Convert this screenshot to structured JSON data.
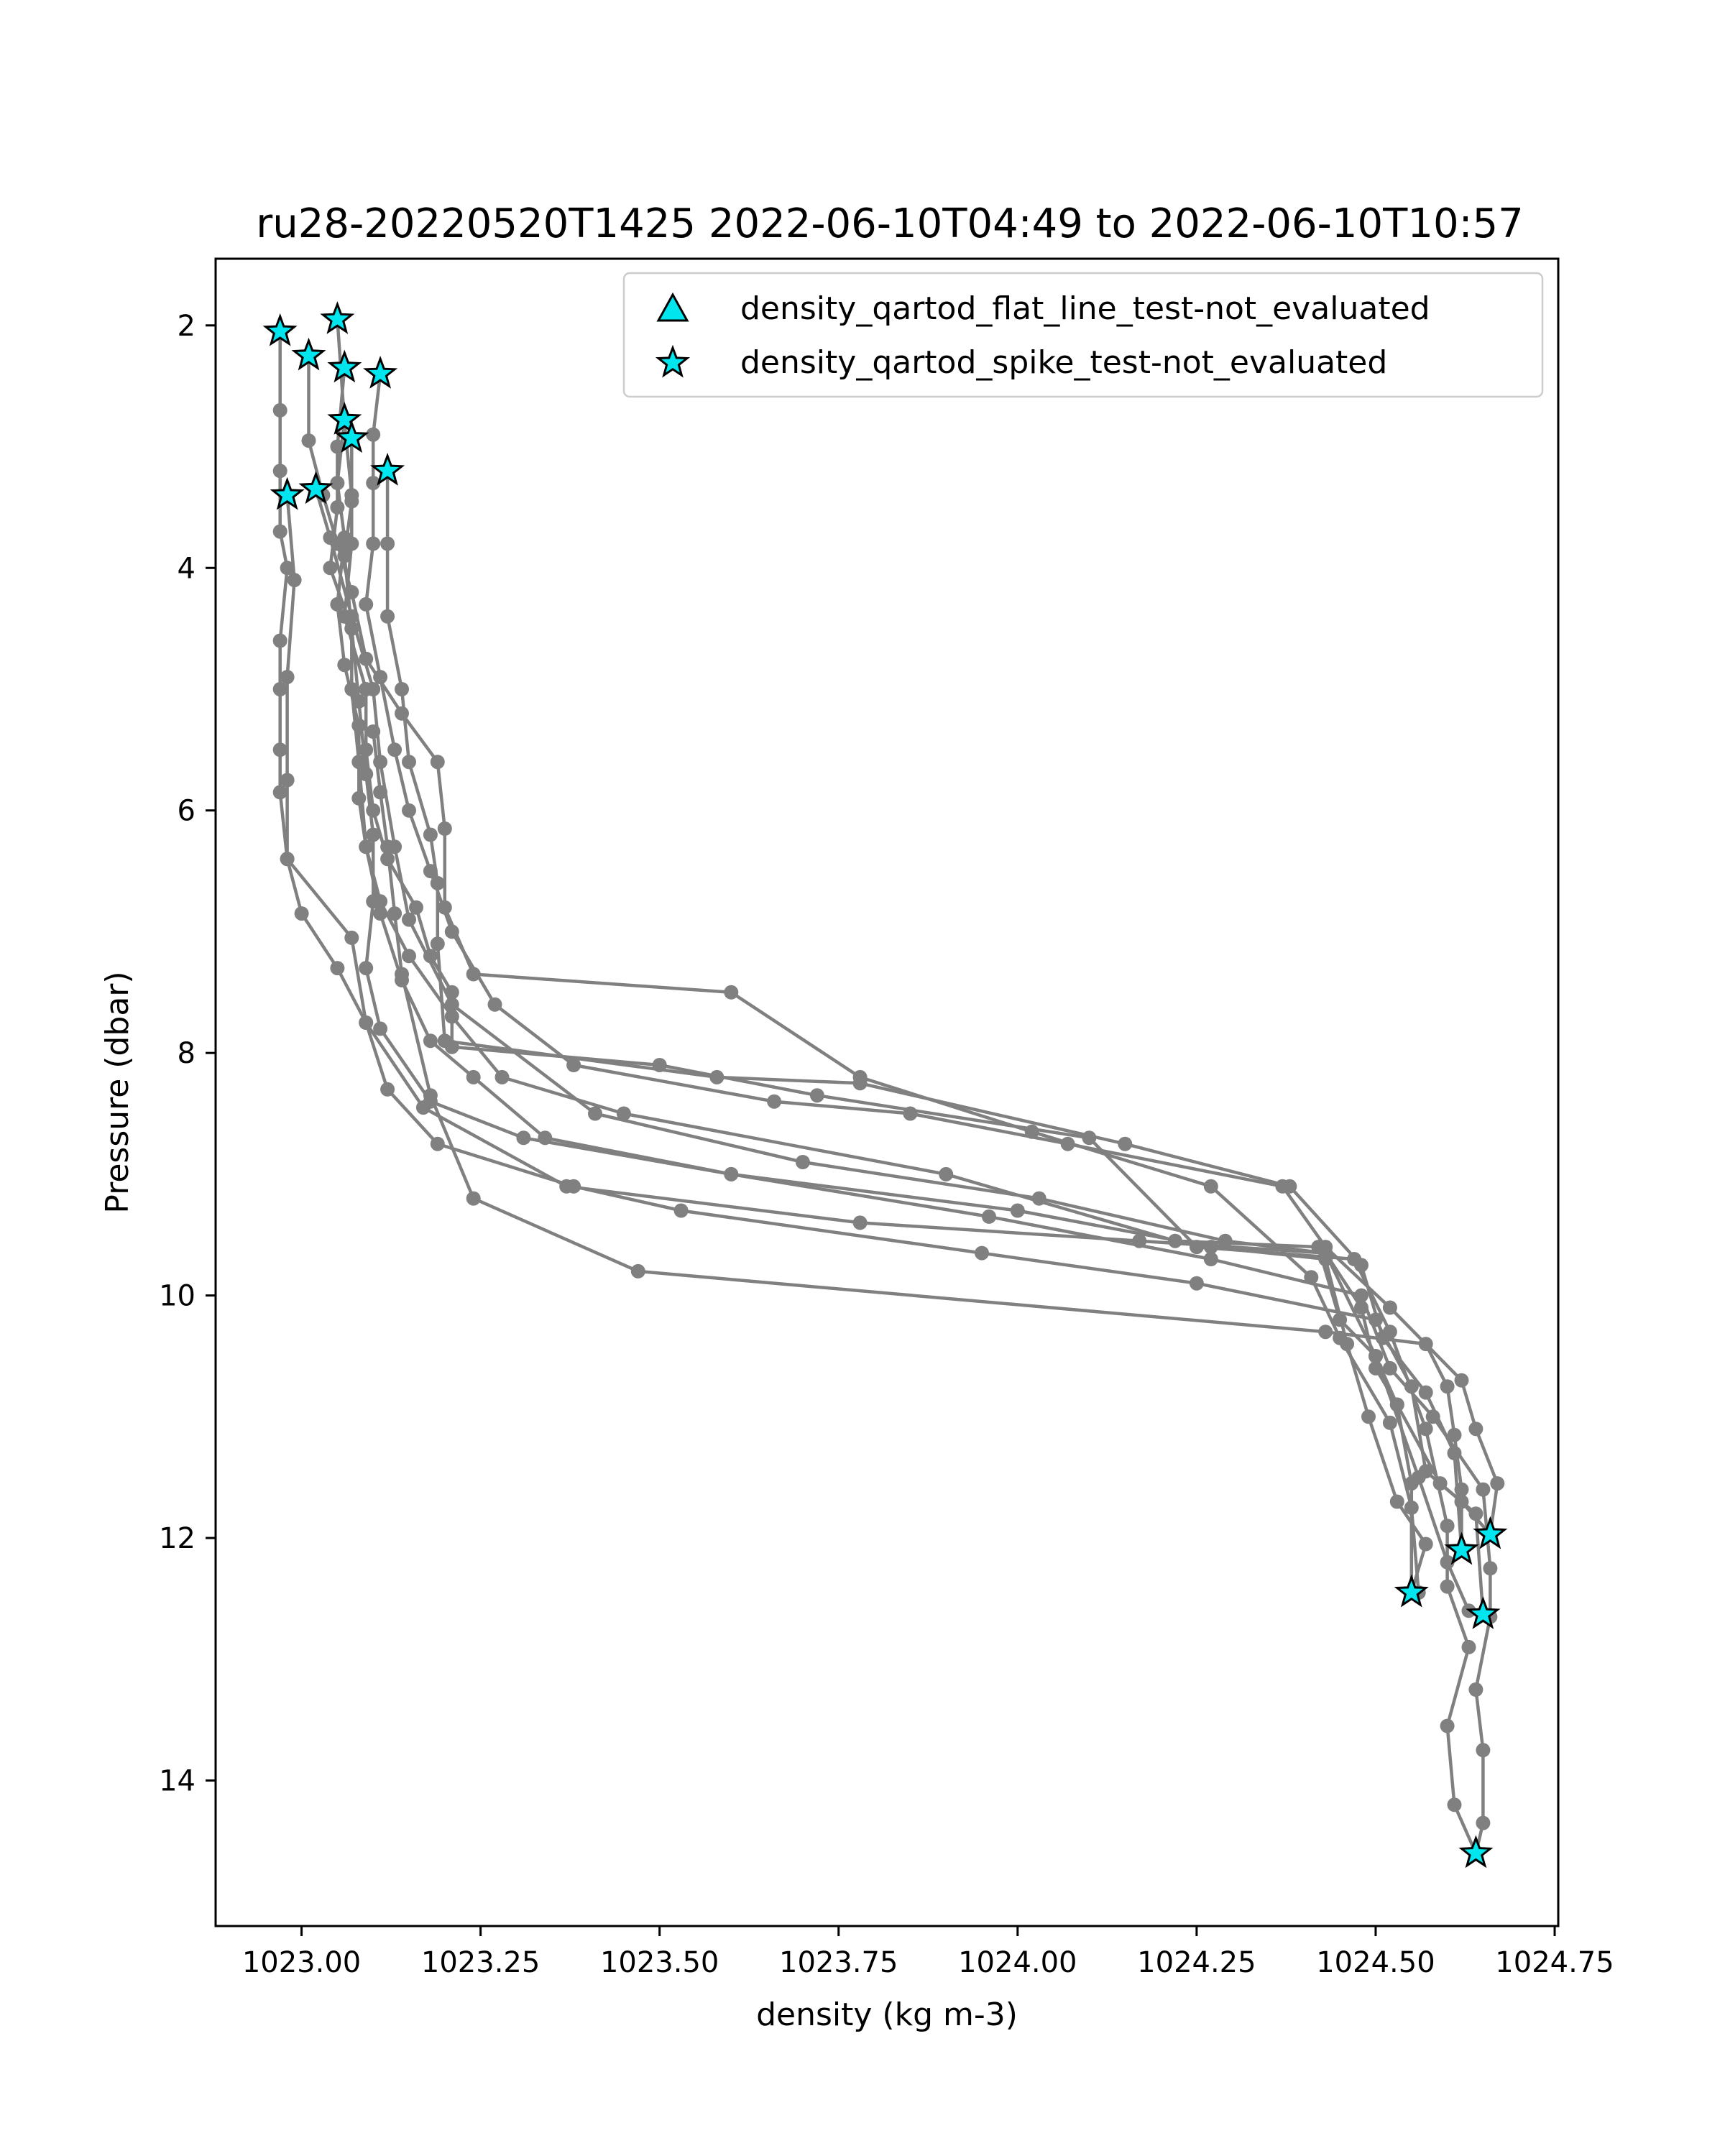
{
  "chart_data": {
    "type": "line",
    "title": "ru28-20220520T1425 2022-06-10T04:49 to 2022-06-10T10:57",
    "xlabel": "density (kg m-3)",
    "ylabel": "Pressure (dbar)",
    "xlim": [
      1022.88,
      1024.755
    ],
    "ylim": [
      15.2,
      1.45
    ],
    "y_inverted": true,
    "grid": false,
    "legend_position": "top-right",
    "x_ticks": [
      {
        "value": 1023.0,
        "label": "1023.00"
      },
      {
        "value": 1023.25,
        "label": "1023.25"
      },
      {
        "value": 1023.5,
        "label": "1023.50"
      },
      {
        "value": 1023.75,
        "label": "1023.75"
      },
      {
        "value": 1024.0,
        "label": "1024.00"
      },
      {
        "value": 1024.25,
        "label": "1024.25"
      },
      {
        "value": 1024.5,
        "label": "1024.50"
      },
      {
        "value": 1024.75,
        "label": "1024.75"
      }
    ],
    "y_ticks": [
      {
        "value": 2,
        "label": "2"
      },
      {
        "value": 4,
        "label": "4"
      },
      {
        "value": 6,
        "label": "6"
      },
      {
        "value": 8,
        "label": "8"
      },
      {
        "value": 10,
        "label": "10"
      },
      {
        "value": 12,
        "label": "12"
      },
      {
        "value": 14,
        "label": "14"
      }
    ],
    "colors": {
      "profile_line": "#808080",
      "flag_fill": "#00e5ee",
      "flag_edge": "#000000"
    },
    "legend": [
      {
        "label": "density_qartod_flat_line_test-not_evaluated",
        "marker": "triangle"
      },
      {
        "label": "density_qartod_spike_test-not_evaluated",
        "marker": "star"
      }
    ],
    "profiles": [
      {
        "points": [
          [
            1022.97,
            2.05
          ],
          [
            1022.97,
            2.7
          ],
          [
            1022.97,
            3.2
          ],
          [
            1022.97,
            3.7
          ],
          [
            1022.98,
            4.0
          ],
          [
            1022.97,
            4.6
          ],
          [
            1022.97,
            5.0
          ],
          [
            1022.97,
            5.5
          ],
          [
            1022.97,
            5.85
          ],
          [
            1022.98,
            6.4
          ],
          [
            1023.0,
            6.85
          ],
          [
            1023.05,
            7.3
          ],
          [
            1023.09,
            7.75
          ],
          [
            1023.12,
            8.3
          ],
          [
            1023.19,
            8.75
          ],
          [
            1023.38,
            9.1
          ],
          [
            1023.53,
            9.3
          ],
          [
            1023.95,
            9.65
          ],
          [
            1024.25,
            9.9
          ],
          [
            1024.5,
            10.2
          ],
          [
            1024.55,
            10.75
          ],
          [
            1024.57,
            11.45
          ],
          [
            1024.62,
            11.7
          ],
          [
            1024.66,
            11.97
          ]
        ]
      },
      {
        "points": [
          [
            1023.05,
            1.95
          ],
          [
            1023.06,
            2.8
          ],
          [
            1023.07,
            3.4
          ],
          [
            1023.07,
            3.8
          ],
          [
            1023.06,
            4.4
          ],
          [
            1023.09,
            5.0
          ],
          [
            1023.09,
            5.5
          ],
          [
            1023.1,
            6.0
          ],
          [
            1023.12,
            6.4
          ],
          [
            1023.16,
            6.8
          ],
          [
            1023.18,
            7.2
          ],
          [
            1023.21,
            7.5
          ],
          [
            1023.21,
            7.95
          ],
          [
            1023.5,
            8.1
          ],
          [
            1023.72,
            8.35
          ],
          [
            1024.1,
            8.7
          ],
          [
            1024.25,
            9.6
          ],
          [
            1024.47,
            9.7
          ],
          [
            1024.52,
            10.3
          ],
          [
            1024.57,
            11.1
          ],
          [
            1024.6,
            11.9
          ],
          [
            1024.6,
            12.4
          ],
          [
            1024.63,
            12.9
          ],
          [
            1024.6,
            13.55
          ],
          [
            1024.61,
            14.2
          ],
          [
            1024.64,
            14.6
          ]
        ]
      },
      {
        "points": [
          [
            1023.01,
            2.25
          ],
          [
            1023.01,
            2.95
          ],
          [
            1023.03,
            3.4
          ],
          [
            1023.05,
            3.8
          ],
          [
            1023.07,
            4.2
          ],
          [
            1023.09,
            4.75
          ],
          [
            1023.14,
            5.2
          ],
          [
            1023.19,
            5.6
          ],
          [
            1023.2,
            6.15
          ],
          [
            1023.2,
            6.8
          ],
          [
            1023.24,
            7.35
          ],
          [
            1023.6,
            7.5
          ],
          [
            1023.78,
            8.2
          ],
          [
            1024.02,
            8.65
          ],
          [
            1024.27,
            9.1
          ],
          [
            1024.41,
            9.85
          ],
          [
            1024.45,
            10.35
          ],
          [
            1024.52,
            11.05
          ],
          [
            1024.55,
            11.75
          ],
          [
            1024.56,
            12.45
          ]
        ]
      },
      {
        "points": [
          [
            1023.06,
            2.35
          ],
          [
            1023.05,
            3.0
          ],
          [
            1023.05,
            3.5
          ],
          [
            1023.04,
            4.0
          ],
          [
            1023.07,
            4.5
          ],
          [
            1023.08,
            5.1
          ],
          [
            1023.09,
            5.7
          ],
          [
            1023.1,
            6.2
          ],
          [
            1023.1,
            6.75
          ],
          [
            1023.09,
            7.3
          ],
          [
            1023.11,
            7.8
          ],
          [
            1023.18,
            8.4
          ],
          [
            1023.31,
            8.7
          ],
          [
            1023.6,
            9.0
          ],
          [
            1023.96,
            9.35
          ],
          [
            1024.27,
            9.7
          ],
          [
            1024.48,
            10.0
          ],
          [
            1024.52,
            10.6
          ],
          [
            1024.58,
            11.0
          ],
          [
            1024.65,
            11.6
          ],
          [
            1024.66,
            12.25
          ],
          [
            1024.66,
            12.65
          ],
          [
            1024.64,
            13.25
          ],
          [
            1024.65,
            13.75
          ],
          [
            1024.65,
            14.35
          ],
          [
            1024.64,
            14.6
          ]
        ]
      },
      {
        "points": [
          [
            1023.11,
            2.4
          ],
          [
            1023.1,
            2.9
          ],
          [
            1023.1,
            3.3
          ],
          [
            1023.1,
            3.8
          ],
          [
            1023.09,
            4.3
          ],
          [
            1023.11,
            4.9
          ],
          [
            1023.13,
            5.5
          ],
          [
            1023.15,
            6.0
          ],
          [
            1023.18,
            6.5
          ],
          [
            1023.21,
            7.0
          ],
          [
            1023.27,
            7.6
          ],
          [
            1023.38,
            8.1
          ],
          [
            1023.66,
            8.4
          ],
          [
            1023.85,
            8.5
          ],
          [
            1024.07,
            8.75
          ],
          [
            1024.37,
            9.1
          ],
          [
            1024.43,
            9.6
          ],
          [
            1024.52,
            10.1
          ],
          [
            1024.62,
            10.7
          ],
          [
            1024.64,
            11.1
          ],
          [
            1024.67,
            11.55
          ],
          [
            1024.66,
            11.97
          ]
        ]
      },
      {
        "points": [
          [
            1023.12,
            3.2
          ],
          [
            1023.12,
            3.8
          ],
          [
            1023.12,
            4.4
          ],
          [
            1023.14,
            5.0
          ],
          [
            1023.15,
            5.6
          ],
          [
            1023.18,
            6.2
          ],
          [
            1023.19,
            6.6
          ],
          [
            1023.19,
            7.1
          ],
          [
            1023.2,
            7.9
          ],
          [
            1023.58,
            8.2
          ],
          [
            1023.78,
            8.25
          ],
          [
            1024.15,
            8.75
          ],
          [
            1024.38,
            9.1
          ],
          [
            1024.48,
            9.75
          ],
          [
            1024.51,
            10.35
          ],
          [
            1024.57,
            10.8
          ],
          [
            1024.61,
            11.3
          ],
          [
            1024.62,
            12.1
          ]
        ]
      },
      {
        "points": [
          [
            1022.98,
            3.4
          ],
          [
            1022.99,
            4.1
          ],
          [
            1022.98,
            4.9
          ],
          [
            1022.98,
            5.75
          ],
          [
            1022.98,
            6.4
          ],
          [
            1023.07,
            7.05
          ],
          [
            1023.09,
            7.75
          ],
          [
            1023.17,
            8.45
          ],
          [
            1023.37,
            9.1
          ],
          [
            1023.78,
            9.4
          ],
          [
            1024.17,
            9.55
          ],
          [
            1024.43,
            9.65
          ],
          [
            1024.5,
            10.5
          ],
          [
            1024.56,
            11.5
          ],
          [
            1024.6,
            12.2
          ],
          [
            1024.63,
            12.6
          ]
        ]
      },
      {
        "points": [
          [
            1023.02,
            3.35
          ],
          [
            1023.04,
            3.75
          ],
          [
            1023.07,
            4.4
          ],
          [
            1023.1,
            5.0
          ],
          [
            1023.11,
            5.6
          ],
          [
            1023.13,
            6.3
          ],
          [
            1023.15,
            6.9
          ],
          [
            1023.21,
            7.6
          ],
          [
            1023.41,
            8.5
          ],
          [
            1023.7,
            8.9
          ],
          [
            1024.03,
            9.2
          ],
          [
            1024.29,
            9.55
          ],
          [
            1024.43,
            9.65
          ],
          [
            1024.48,
            10.1
          ],
          [
            1024.5,
            10.6
          ],
          [
            1024.53,
            10.9
          ],
          [
            1024.59,
            11.55
          ],
          [
            1024.64,
            11.8
          ],
          [
            1024.65,
            12.63
          ]
        ]
      },
      {
        "points": [
          [
            1023.06,
            2.78
          ],
          [
            1023.05,
            3.3
          ],
          [
            1023.06,
            3.75
          ],
          [
            1023.05,
            4.3
          ],
          [
            1023.06,
            4.8
          ],
          [
            1023.08,
            5.3
          ],
          [
            1023.08,
            5.9
          ],
          [
            1023.09,
            6.3
          ],
          [
            1023.11,
            6.75
          ],
          [
            1023.15,
            7.2
          ],
          [
            1023.21,
            7.7
          ],
          [
            1023.28,
            8.2
          ],
          [
            1023.45,
            8.5
          ],
          [
            1023.9,
            9.0
          ],
          [
            1024.22,
            9.55
          ],
          [
            1024.42,
            9.6
          ],
          [
            1024.45,
            10.2
          ],
          [
            1024.5,
            10.5
          ],
          [
            1024.53,
            10.9
          ],
          [
            1024.55,
            11.55
          ],
          [
            1024.55,
            12.45
          ]
        ]
      },
      {
        "points": [
          [
            1023.07,
            2.93
          ],
          [
            1023.07,
            3.45
          ],
          [
            1023.06,
            3.9
          ],
          [
            1023.07,
            4.5
          ],
          [
            1023.07,
            5.0
          ],
          [
            1023.08,
            5.6
          ],
          [
            1023.09,
            6.3
          ],
          [
            1023.11,
            6.85
          ],
          [
            1023.14,
            7.4
          ],
          [
            1023.18,
            7.9
          ],
          [
            1023.24,
            8.2
          ],
          [
            1023.34,
            8.7
          ],
          [
            1023.6,
            9.0
          ],
          [
            1024.0,
            9.3
          ],
          [
            1024.27,
            9.6
          ],
          [
            1024.43,
            9.7
          ],
          [
            1024.46,
            10.4
          ],
          [
            1024.49,
            11.0
          ],
          [
            1024.53,
            11.7
          ],
          [
            1024.57,
            12.05
          ],
          [
            1024.55,
            12.45
          ]
        ]
      },
      {
        "points": [
          [
            1023.1,
            5.35
          ],
          [
            1023.11,
            5.85
          ],
          [
            1023.12,
            6.3
          ],
          [
            1023.13,
            6.85
          ],
          [
            1023.14,
            7.35
          ],
          [
            1023.18,
            8.35
          ],
          [
            1023.24,
            9.2
          ],
          [
            1023.47,
            9.8
          ],
          [
            1024.43,
            10.3
          ],
          [
            1024.57,
            10.4
          ],
          [
            1024.6,
            10.75
          ],
          [
            1024.61,
            11.15
          ],
          [
            1024.62,
            11.6
          ],
          [
            1024.62,
            12.1
          ]
        ]
      }
    ],
    "spike_flags": [
      [
        1022.97,
        2.05
      ],
      [
        1023.05,
        1.95
      ],
      [
        1023.01,
        2.25
      ],
      [
        1023.06,
        2.35
      ],
      [
        1023.11,
        2.4
      ],
      [
        1023.06,
        2.78
      ],
      [
        1023.07,
        2.93
      ],
      [
        1023.12,
        3.2
      ],
      [
        1023.02,
        3.35
      ],
      [
        1022.98,
        3.4
      ],
      [
        1024.66,
        11.97
      ],
      [
        1024.62,
        12.1
      ],
      [
        1024.55,
        12.45
      ],
      [
        1024.65,
        12.63
      ],
      [
        1024.64,
        14.6
      ]
    ]
  }
}
